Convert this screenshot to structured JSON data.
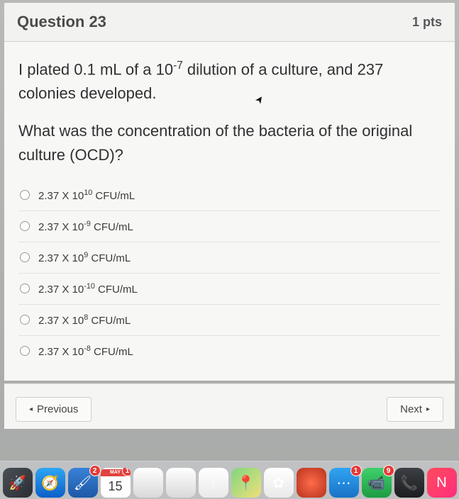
{
  "header": {
    "title": "Question 23",
    "points": "1 pts"
  },
  "question": {
    "line1": "I plated 0.1 mL of a 10⁻⁷ dilution of a culture, and 237 colonies developed.",
    "line2": "What was the concentration of the bacteria of the original culture (OCD)?"
  },
  "options": [
    {
      "html": "2.37 X 10<sup>10</sup> CFU/mL"
    },
    {
      "html": "2.37 X 10<sup>-9</sup> CFU/mL"
    },
    {
      "html": "2.37 X 10<sup>9</sup> CFU/mL"
    },
    {
      "html": "2.37 X 10<sup>-10</sup> CFU/mL"
    },
    {
      "html": "2.37 X 10<sup>8</sup> CFU/mL"
    },
    {
      "html": "2.37 X 10<sup>-8</sup> CFU/mL"
    }
  ],
  "nav": {
    "prev": "Previous",
    "next": "Next"
  },
  "dock": {
    "calendar": {
      "month": "MAY",
      "day": "15",
      "badge": "1"
    },
    "items": [
      {
        "name": "launchpad",
        "bg": "linear-gradient(135deg,#4a4f56,#2a2e34)",
        "glyph": "🚀"
      },
      {
        "name": "safari",
        "bg": "linear-gradient(180deg,#2ea6f4,#0d5fc8)",
        "glyph": "🧭"
      },
      {
        "name": "paint",
        "bg": "linear-gradient(180deg,#3a81d6,#1d58a6)",
        "glyph": "🖌",
        "badge": "2"
      },
      {
        "name": "calendar",
        "type": "cal"
      },
      {
        "name": "doc1",
        "bg": "linear-gradient(180deg,#ffffff,#d9d9d9)",
        "glyph": ""
      },
      {
        "name": "doc2",
        "bg": "linear-gradient(180deg,#ffffff,#d9d9d9)",
        "glyph": ""
      },
      {
        "name": "reminders",
        "bg": "linear-gradient(180deg,#ffffff,#e9e9e9)",
        "glyph": "⋮"
      },
      {
        "name": "maps",
        "bg": "linear-gradient(135deg,#7fd67f,#f0e07a)",
        "glyph": "📍"
      },
      {
        "name": "photos",
        "bg": "linear-gradient(180deg,#ffffff,#e9e9e9)",
        "glyph": "✿"
      },
      {
        "name": "photobooth",
        "bg": "radial-gradient(circle,#ff6b4a,#b7321d)",
        "glyph": ""
      },
      {
        "name": "messages",
        "bg": "linear-gradient(180deg,#2fa4f2,#1a72c8)",
        "glyph": "⋯",
        "badge": "1"
      },
      {
        "name": "facetime",
        "bg": "linear-gradient(180deg,#3fd06a,#1f9b44)",
        "glyph": "📹",
        "badge": "9"
      },
      {
        "name": "phone",
        "bg": "linear-gradient(180deg,#3c3f43,#1b1d20)",
        "glyph": "📞"
      },
      {
        "name": "news",
        "bg": "linear-gradient(135deg,#ff4b5c,#ff2e7e)",
        "glyph": "N"
      }
    ]
  }
}
